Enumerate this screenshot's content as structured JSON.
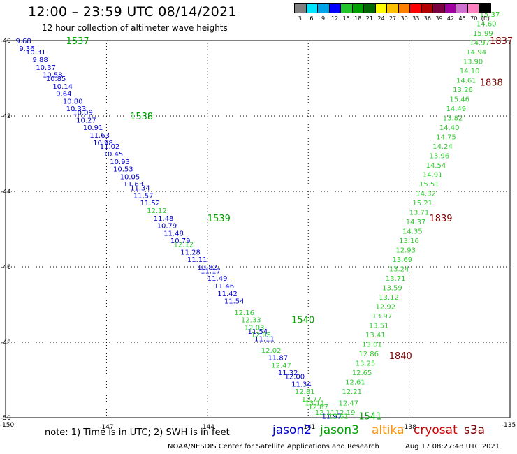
{
  "header": {
    "title": "12:00 – 23:59 UTC 08/14/2021",
    "subtitle": "12 hour collection of altimeter wave heights"
  },
  "color_scale": {
    "labels": [
      "3",
      "6",
      "9",
      "12",
      "15",
      "18",
      "21",
      "24",
      "27",
      "30",
      "33",
      "36",
      "39",
      "42",
      "45",
      "70",
      "(ft)"
    ],
    "colors": [
      "#808080",
      "#00e5ff",
      "#00a2e8",
      "#0000ff",
      "#22c52a",
      "#00a000",
      "#006600",
      "#ffff00",
      "#ffc000",
      "#ff8000",
      "#ff0000",
      "#b00000",
      "#7a0040",
      "#a000a0",
      "#d070d0",
      "#ff80c0",
      "#000000"
    ]
  },
  "footer": {
    "note": "note:  1) Time is in UTC;  2) SWH is in feet",
    "credit": "NOAA/NESDIS Center for Satellite Applications and Research",
    "timestamp": "Aug 17 08:27:48 UTC 2021"
  },
  "legend": [
    {
      "name": "jason2",
      "color": "#0000d0"
    },
    {
      "name": "jason3",
      "color": "#00a000"
    },
    {
      "name": "altika",
      "color": "#ff9000"
    },
    {
      "name": "cryosat",
      "color": "#d00000"
    },
    {
      "name": "s3a",
      "color": "#7a0000"
    }
  ],
  "chart_data": {
    "type": "scatter",
    "xlim": [
      -150,
      -135
    ],
    "ylim": [
      -50,
      -40
    ],
    "x_ticks": [
      "-150",
      "-147",
      "-144",
      "-141",
      "-138",
      "-135"
    ],
    "y_ticks": [
      "-40",
      "-42",
      "-44",
      "-46",
      "-48",
      "-50"
    ],
    "grid": true,
    "pass_labels": [
      {
        "text": "1537",
        "x": -148.2,
        "y": -40.0,
        "color": "#00a000"
      },
      {
        "text": "1538",
        "x": -146.3,
        "y": -42.0,
        "color": "#00a000"
      },
      {
        "text": "1539",
        "x": -144.0,
        "y": -44.7,
        "color": "#00a000"
      },
      {
        "text": "1540",
        "x": -141.5,
        "y": -47.4,
        "color": "#00a000"
      },
      {
        "text": "1541",
        "x": -139.5,
        "y": -49.95,
        "color": "#00a000"
      },
      {
        "text": "1837",
        "x": -135.6,
        "y": -40.0,
        "color": "#7a0000"
      },
      {
        "text": "1838",
        "x": -135.9,
        "y": -41.1,
        "color": "#7a0000"
      },
      {
        "text": "1839",
        "x": -137.4,
        "y": -44.7,
        "color": "#7a0000"
      },
      {
        "text": "1840",
        "x": -138.6,
        "y": -48.35,
        "color": "#7a0000"
      }
    ],
    "series": [
      {
        "name": "jason2",
        "color": "#0000d0",
        "points": [
          {
            "x": -149.7,
            "y": -40.0,
            "v": "9.68"
          },
          {
            "x": -149.6,
            "y": -40.2,
            "v": "9.36"
          },
          {
            "x": -149.4,
            "y": -40.3,
            "v": "10.31"
          },
          {
            "x": -149.2,
            "y": -40.5,
            "v": "9.88"
          },
          {
            "x": -149.1,
            "y": -40.7,
            "v": "10.37"
          },
          {
            "x": -148.9,
            "y": -40.9,
            "v": "10.58"
          },
          {
            "x": -148.8,
            "y": -41.0,
            "v": "10.85"
          },
          {
            "x": -148.6,
            "y": -41.2,
            "v": "10.14"
          },
          {
            "x": -148.5,
            "y": -41.4,
            "v": "9.64"
          },
          {
            "x": -148.3,
            "y": -41.6,
            "v": "10.80"
          },
          {
            "x": -148.2,
            "y": -41.8,
            "v": "10.33"
          },
          {
            "x": -148.0,
            "y": -41.9,
            "v": "10.09"
          },
          {
            "x": -147.9,
            "y": -42.1,
            "v": "10.27"
          },
          {
            "x": -147.7,
            "y": -42.3,
            "v": "10.91"
          },
          {
            "x": -147.5,
            "y": -42.5,
            "v": "11.63"
          },
          {
            "x": -147.4,
            "y": -42.7,
            "v": "10.98"
          },
          {
            "x": -147.2,
            "y": -42.8,
            "v": "11.02"
          },
          {
            "x": -147.1,
            "y": -43.0,
            "v": "10.45"
          },
          {
            "x": -146.9,
            "y": -43.2,
            "v": "10.93"
          },
          {
            "x": -146.8,
            "y": -43.4,
            "v": "10.53"
          },
          {
            "x": -146.6,
            "y": -43.6,
            "v": "10.05"
          },
          {
            "x": -146.5,
            "y": -43.8,
            "v": "11.63"
          },
          {
            "x": -146.3,
            "y": -43.9,
            "v": "11.34"
          },
          {
            "x": -146.2,
            "y": -44.1,
            "v": "11.57"
          },
          {
            "x": -146.0,
            "y": -44.3,
            "v": "11.52"
          },
          {
            "x": -145.6,
            "y": -44.7,
            "v": "11.48"
          },
          {
            "x": -145.5,
            "y": -44.9,
            "v": "10.79"
          },
          {
            "x": -145.3,
            "y": -45.1,
            "v": "11.48"
          },
          {
            "x": -145.1,
            "y": -45.3,
            "v": "10.79"
          },
          {
            "x": -144.8,
            "y": -45.6,
            "v": "11.28"
          },
          {
            "x": -144.6,
            "y": -45.8,
            "v": "11.11"
          },
          {
            "x": -144.3,
            "y": -46.0,
            "v": "10.82"
          },
          {
            "x": -144.2,
            "y": -46.1,
            "v": "11.17"
          },
          {
            "x": -144.0,
            "y": -46.3,
            "v": "11.49"
          },
          {
            "x": -143.8,
            "y": -46.5,
            "v": "11.46"
          },
          {
            "x": -143.7,
            "y": -46.7,
            "v": "11.42"
          },
          {
            "x": -143.5,
            "y": -46.9,
            "v": "11.54"
          },
          {
            "x": -142.8,
            "y": -47.7,
            "v": "11.54"
          },
          {
            "x": -142.6,
            "y": -47.9,
            "v": "11.11"
          },
          {
            "x": -142.2,
            "y": -48.4,
            "v": "11.87"
          },
          {
            "x": -141.9,
            "y": -48.8,
            "v": "11.32"
          },
          {
            "x": -141.7,
            "y": -48.9,
            "v": "12.00"
          },
          {
            "x": -141.5,
            "y": -49.1,
            "v": "11.34"
          },
          {
            "x": -140.6,
            "y": -49.95,
            "v": "11.97"
          }
        ]
      },
      {
        "name": "jason3",
        "color": "#2ecc2e",
        "points": [
          {
            "x": -145.8,
            "y": -44.5,
            "v": "12.12"
          },
          {
            "x": -145.0,
            "y": -45.4,
            "v": "12.12"
          },
          {
            "x": -143.2,
            "y": -47.2,
            "v": "12.16"
          },
          {
            "x": -143.0,
            "y": -47.4,
            "v": "12.33"
          },
          {
            "x": -142.9,
            "y": -47.6,
            "v": "12.03"
          },
          {
            "x": -142.7,
            "y": -47.8,
            "v": "12.05"
          },
          {
            "x": -142.4,
            "y": -48.2,
            "v": "12.02"
          },
          {
            "x": -142.1,
            "y": -48.6,
            "v": "12.47"
          },
          {
            "x": -141.4,
            "y": -49.3,
            "v": "12.81"
          },
          {
            "x": -141.2,
            "y": -49.5,
            "v": "12.77"
          },
          {
            "x": -141.1,
            "y": -49.6,
            "v": "13.11"
          },
          {
            "x": -141.0,
            "y": -49.7,
            "v": "12.87"
          },
          {
            "x": -140.8,
            "y": -49.85,
            "v": "12.11"
          },
          {
            "x": -140.4,
            "y": -49.95,
            "v": "12.61"
          },
          {
            "x": -140.2,
            "y": -49.85,
            "v": "12.19"
          },
          {
            "x": -140.1,
            "y": -49.6,
            "v": "12.47"
          },
          {
            "x": -140.0,
            "y": -49.3,
            "v": "12.21"
          },
          {
            "x": -139.9,
            "y": -49.05,
            "v": "12.61"
          },
          {
            "x": -139.7,
            "y": -48.8,
            "v": "12.65"
          },
          {
            "x": -139.6,
            "y": -48.55,
            "v": "13.25"
          },
          {
            "x": -139.5,
            "y": -48.3,
            "v": "12.86"
          },
          {
            "x": -139.4,
            "y": -48.05,
            "v": "13.01"
          },
          {
            "x": -139.3,
            "y": -47.8,
            "v": "13.41"
          },
          {
            "x": -139.2,
            "y": -47.55,
            "v": "13.51"
          },
          {
            "x": -139.1,
            "y": -47.3,
            "v": "13.97"
          },
          {
            "x": -139.0,
            "y": -47.05,
            "v": "12.92"
          },
          {
            "x": -138.9,
            "y": -46.8,
            "v": "13.12"
          },
          {
            "x": -138.8,
            "y": -46.55,
            "v": "13.59"
          },
          {
            "x": -138.7,
            "y": -46.3,
            "v": "13.71"
          },
          {
            "x": -138.6,
            "y": -46.05,
            "v": "13.24"
          },
          {
            "x": -138.5,
            "y": -45.8,
            "v": "13.69"
          },
          {
            "x": -138.4,
            "y": -45.55,
            "v": "12.93"
          },
          {
            "x": -138.3,
            "y": -45.3,
            "v": "13.16"
          },
          {
            "x": -138.2,
            "y": -45.05,
            "v": "14.35"
          },
          {
            "x": -138.1,
            "y": -44.8,
            "v": "14.37"
          },
          {
            "x": -138.0,
            "y": -44.55,
            "v": "13.71"
          },
          {
            "x": -137.9,
            "y": -44.3,
            "v": "15.21"
          },
          {
            "x": -137.8,
            "y": -44.05,
            "v": "14.32"
          },
          {
            "x": -137.7,
            "y": -43.8,
            "v": "15.51"
          },
          {
            "x": -137.6,
            "y": -43.55,
            "v": "14.91"
          },
          {
            "x": -137.5,
            "y": -43.3,
            "v": "14.54"
          },
          {
            "x": -137.4,
            "y": -43.05,
            "v": "13.96"
          },
          {
            "x": -137.3,
            "y": -42.8,
            "v": "14.24"
          },
          {
            "x": -137.2,
            "y": -42.55,
            "v": "14.75"
          },
          {
            "x": -137.1,
            "y": -42.3,
            "v": "14.40"
          },
          {
            "x": -137.0,
            "y": -42.05,
            "v": "13.82"
          },
          {
            "x": -136.9,
            "y": -41.8,
            "v": "14.49"
          },
          {
            "x": -136.8,
            "y": -41.55,
            "v": "15.46"
          },
          {
            "x": -136.7,
            "y": -41.3,
            "v": "13.26"
          },
          {
            "x": -136.6,
            "y": -41.05,
            "v": "14.61"
          },
          {
            "x": -136.5,
            "y": -40.8,
            "v": "14.10"
          },
          {
            "x": -136.4,
            "y": -40.55,
            "v": "13.90"
          },
          {
            "x": -136.3,
            "y": -40.3,
            "v": "14.94"
          },
          {
            "x": -136.2,
            "y": -40.05,
            "v": "14.97"
          },
          {
            "x": -136.1,
            "y": -39.8,
            "v": "15.99"
          },
          {
            "x": -136.0,
            "y": -39.55,
            "v": "14.60"
          },
          {
            "x": -135.9,
            "y": -39.3,
            "v": "15.37"
          }
        ]
      }
    ]
  }
}
